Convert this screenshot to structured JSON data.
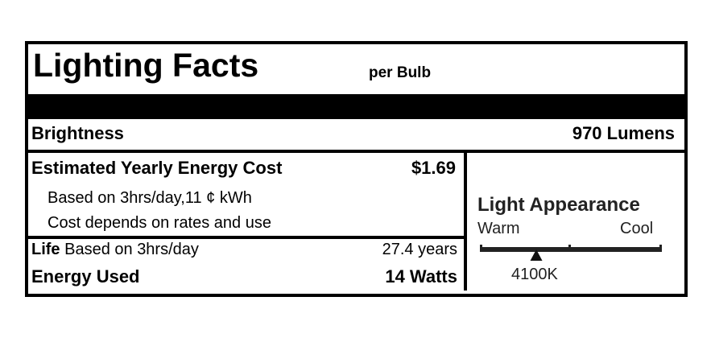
{
  "header": {
    "title": "Lighting Facts",
    "subtitle": "per Bulb"
  },
  "brightness": {
    "label": "Brightness",
    "value": "970 Lumens"
  },
  "energy_cost": {
    "label": "Estimated Yearly Energy Cost",
    "value": "$1.69",
    "note1": "Based on 3hrs/day,11 ¢ kWh",
    "note2": "Cost depends on rates and use"
  },
  "life": {
    "label": "Life",
    "label_suffix": " Based on 3hrs/day",
    "value": "27.4 years"
  },
  "energy_used": {
    "label": "Energy Used",
    "value": "14 Watts"
  },
  "light_appearance": {
    "title": "Light Appearance",
    "warm": "Warm",
    "cool": "Cool",
    "value": "4100K",
    "position_fraction": 0.31
  }
}
